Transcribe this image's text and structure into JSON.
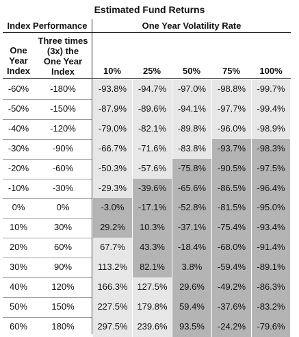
{
  "title": "Estimated Fund Returns",
  "header_left": "Index Performance",
  "header_right": "One Year Volatility Rate",
  "col_index_lines": [
    "One",
    "Year",
    "Index"
  ],
  "col_three_lines": [
    "Three times",
    "(3x) the",
    "One Year",
    "Index"
  ],
  "vol_headers": [
    "10%",
    "25%",
    "50%",
    "75%",
    "100%"
  ],
  "rows": [
    {
      "index": "-60%",
      "three": "-180%",
      "values": [
        "-93.8%",
        "-94.7%",
        "-97.0%",
        "-98.8%",
        "-99.7%"
      ],
      "shade": [
        "l",
        "l",
        "l",
        "l",
        "l"
      ]
    },
    {
      "index": "-50%",
      "three": "-150%",
      "values": [
        "-87.9%",
        "-89.6%",
        "-94.1%",
        "-97.7%",
        "-99.4%"
      ],
      "shade": [
        "l",
        "l",
        "l",
        "l",
        "l"
      ]
    },
    {
      "index": "-40%",
      "three": "-120%",
      "values": [
        "-79.0%",
        "-82.1%",
        "-89.8%",
        "-96.0%",
        "-98.9%"
      ],
      "shade": [
        "l",
        "l",
        "l",
        "l",
        "l"
      ]
    },
    {
      "index": "-30%",
      "three": "-90%",
      "values": [
        "-66.7%",
        "-71.6%",
        "-83.8%",
        "-93.7%",
        "-98.3%"
      ],
      "shade": [
        "l",
        "l",
        "l",
        "d",
        "d"
      ]
    },
    {
      "index": "-20%",
      "three": "-60%",
      "values": [
        "-50.3%",
        "-57.6%",
        "-75.8%",
        "-90.5%",
        "-97.5%"
      ],
      "shade": [
        "l",
        "l",
        "d",
        "d",
        "d"
      ]
    },
    {
      "index": "-10%",
      "three": "-30%",
      "values": [
        "-29.3%",
        "-39.6%",
        "-65.6%",
        "-86.5%",
        "-96.4%"
      ],
      "shade": [
        "l",
        "d",
        "d",
        "d",
        "d"
      ]
    },
    {
      "index": "0%",
      "three": "0%",
      "values": [
        "-3.0%",
        "-17.1%",
        "-52.8%",
        "-81.5%",
        "-95.0%"
      ],
      "shade": [
        "d",
        "d",
        "d",
        "d",
        "d"
      ]
    },
    {
      "index": "10%",
      "three": "30%",
      "values": [
        "29.2%",
        "10.3%",
        "-37.1%",
        "-75.4%",
        "-93.4%"
      ],
      "shade": [
        "d",
        "d",
        "d",
        "d",
        "d"
      ]
    },
    {
      "index": "20%",
      "three": "60%",
      "values": [
        "67.7%",
        "43.3%",
        "-18.4%",
        "-68.0%",
        "-91.4%"
      ],
      "shade": [
        "l",
        "d",
        "d",
        "d",
        "d"
      ]
    },
    {
      "index": "30%",
      "three": "90%",
      "values": [
        "113.2%",
        "82.1%",
        "3.8%",
        "-59.4%",
        "-89.1%"
      ],
      "shade": [
        "l",
        "d",
        "d",
        "d",
        "d"
      ]
    },
    {
      "index": "40%",
      "three": "120%",
      "values": [
        "166.3%",
        "127.5%",
        "29.6%",
        "-49.2%",
        "-86.3%"
      ],
      "shade": [
        "l",
        "l",
        "d",
        "d",
        "d"
      ]
    },
    {
      "index": "50%",
      "three": "150%",
      "values": [
        "227.5%",
        "179.8%",
        "59.4%",
        "-37.6%",
        "-83.2%"
      ],
      "shade": [
        "l",
        "l",
        "d",
        "d",
        "d"
      ]
    },
    {
      "index": "60%",
      "three": "180%",
      "values": [
        "297.5%",
        "239.6%",
        "93.5%",
        "-24.2%",
        "-79.6%"
      ],
      "shade": [
        "l",
        "l",
        "d",
        "d",
        "d"
      ]
    }
  ],
  "colors": {
    "light": "#e7e7e7",
    "dark": "#b4b4b4"
  }
}
